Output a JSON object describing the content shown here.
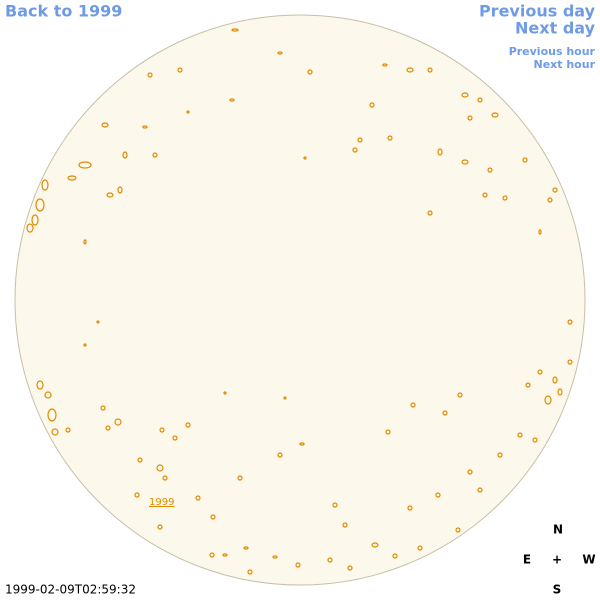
{
  "nav": {
    "back": "Back to 1999",
    "previous_day": "Previous day",
    "next_day": "Next day",
    "previous_hour": "Previous hour",
    "next_hour": "Next hour"
  },
  "image": {
    "timestamp": "1999-02-09T02:59:32",
    "label": "1999"
  },
  "compass": {
    "north": "N",
    "south": "S",
    "east": "E",
    "west": "W",
    "center": "+"
  }
}
